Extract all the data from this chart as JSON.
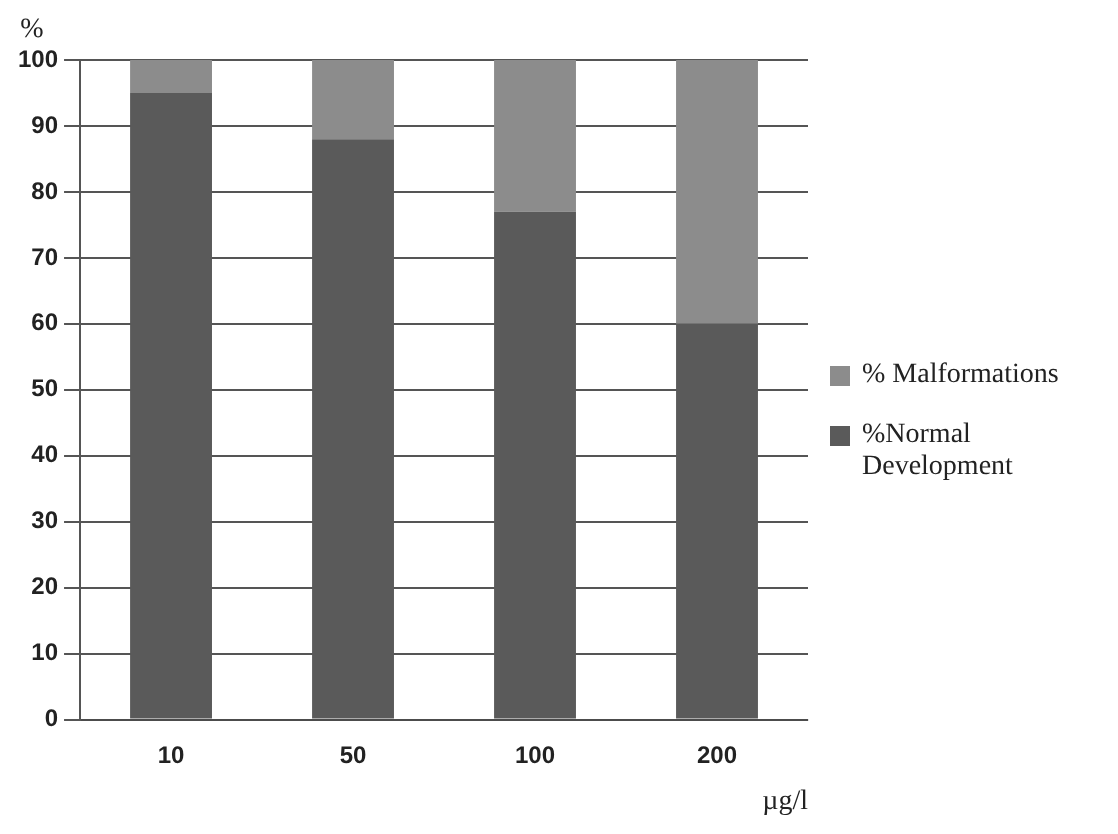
{
  "chart_data": {
    "type": "bar",
    "stacked": true,
    "xlabel": "µg/l",
    "ylabel": "%",
    "categories": [
      "10",
      "50",
      "100",
      "200"
    ],
    "series": [
      {
        "name": "%Normal Development",
        "color": "#5a5a5a",
        "values": [
          95,
          88,
          77,
          60
        ]
      },
      {
        "name": "% Malformations",
        "color": "#8c8c8c",
        "values": [
          5,
          12,
          23,
          40
        ]
      }
    ],
    "ylim": [
      0,
      100
    ],
    "yticks": [
      0,
      10,
      20,
      30,
      40,
      50,
      60,
      70,
      80,
      90,
      100
    ],
    "grid": "y",
    "legend": "right"
  }
}
